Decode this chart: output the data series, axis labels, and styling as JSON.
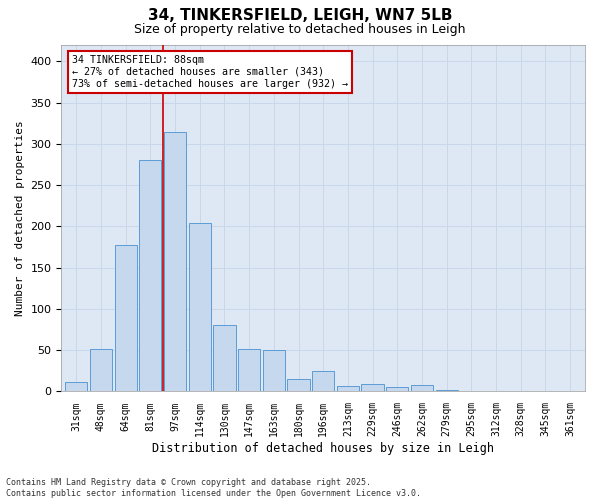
{
  "title_line1": "34, TINKERSFIELD, LEIGH, WN7 5LB",
  "title_line2": "Size of property relative to detached houses in Leigh",
  "xlabel": "Distribution of detached houses by size in Leigh",
  "ylabel": "Number of detached properties",
  "categories": [
    "31sqm",
    "48sqm",
    "64sqm",
    "81sqm",
    "97sqm",
    "114sqm",
    "130sqm",
    "147sqm",
    "163sqm",
    "180sqm",
    "196sqm",
    "213sqm",
    "229sqm",
    "246sqm",
    "262sqm",
    "279sqm",
    "295sqm",
    "312sqm",
    "328sqm",
    "345sqm",
    "361sqm"
  ],
  "values": [
    11,
    52,
    178,
    281,
    315,
    204,
    81,
    52,
    50,
    15,
    25,
    7,
    9,
    5,
    8,
    2,
    1,
    1,
    1,
    1,
    1
  ],
  "bar_color": "#c5d8ee",
  "bar_edge_color": "#5b9bd5",
  "vline_color": "#cc0000",
  "annotation_text": "34 TINKERSFIELD: 88sqm\n← 27% of detached houses are smaller (343)\n73% of semi-detached houses are larger (932) →",
  "annotation_box_color": "#ffffff",
  "annotation_box_edge": "#cc0000",
  "grid_color": "#c8d8ea",
  "background_color": "#dde8f4",
  "footer_text": "Contains HM Land Registry data © Crown copyright and database right 2025.\nContains public sector information licensed under the Open Government Licence v3.0.",
  "ylim": [
    0,
    420
  ],
  "yticks": [
    0,
    50,
    100,
    150,
    200,
    250,
    300,
    350,
    400
  ]
}
